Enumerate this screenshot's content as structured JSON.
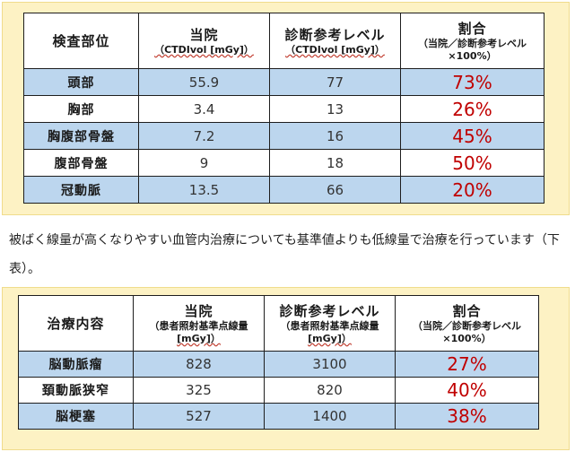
{
  "table1": {
    "headers": {
      "col1": "検査部位",
      "col2_main": "当院",
      "col2_sub": "（CTDIvol [mGy]）",
      "col3_main": "診断参考レベル",
      "col3_sub": "（CTDIvol [mGy]）",
      "col4_main": "割合",
      "col4_sub1": "（当院／診断参考レベル",
      "col4_sub2": "×100%）"
    },
    "rows": [
      {
        "part": "頭部",
        "hospital": "55.9",
        "drl": "77",
        "ratio": "73%"
      },
      {
        "part": "胸部",
        "hospital": "3.4",
        "drl": "13",
        "ratio": "26%"
      },
      {
        "part": "胸腹部骨盤",
        "hospital": "7.2",
        "drl": "16",
        "ratio": "45%"
      },
      {
        "part": "腹部骨盤",
        "hospital": "9",
        "drl": "18",
        "ratio": "50%"
      },
      {
        "part": "冠動脈",
        "hospital": "13.5",
        "drl": "66",
        "ratio": "20%"
      }
    ]
  },
  "paragraph": "被ばく線量が高くなりやすい血管内治療についても基準値よりも低線量で治療を行っています（下表）。",
  "table2": {
    "headers": {
      "col1": "治療内容",
      "col2_main": "当院",
      "col2_sub1": "（患者照射基準点線量",
      "col2_sub2": "[mGy]）",
      "col3_main": "診断参考レベル",
      "col3_sub1": "（患者照射基準点線量",
      "col3_sub2": "[mGy]）",
      "col4_main": "割合",
      "col4_sub1": "（当院／診断参考レベル",
      "col4_sub2": "×100%）"
    },
    "rows": [
      {
        "treatment": "脳動脈瘤",
        "hospital": "828",
        "drl": "3100",
        "ratio": "27%"
      },
      {
        "treatment": "頚動脈狭窄",
        "hospital": "325",
        "drl": "820",
        "ratio": "40%"
      },
      {
        "treatment": "脳梗塞",
        "hospital": "527",
        "drl": "1400",
        "ratio": "38%"
      }
    ]
  },
  "colors": {
    "frame_bg": "#fdf2c4",
    "row_blue": "#bcd6ee",
    "ratio_red": "#c00000"
  }
}
